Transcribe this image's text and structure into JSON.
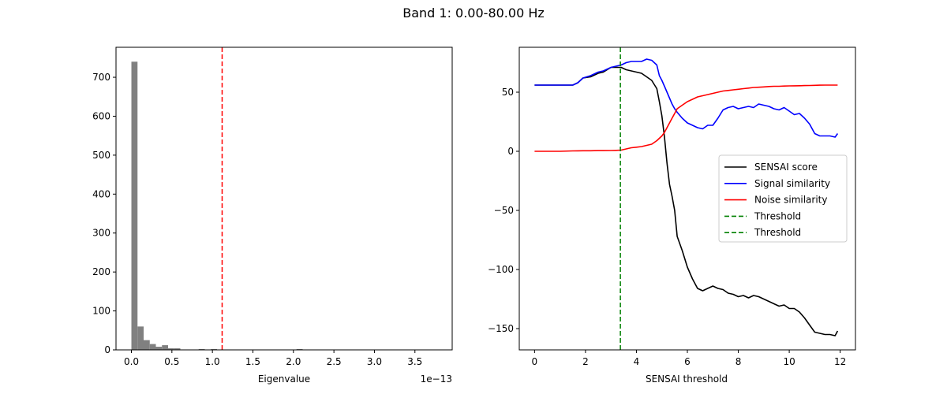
{
  "figure": {
    "suptitle": "Band 1: 0.00-80.00 Hz"
  },
  "chart_data": [
    {
      "type": "bar",
      "subtype": "histogram",
      "title": "",
      "xlabel": "Eigenvalue",
      "ylabel": "",
      "x_offset_label": "1e−13",
      "xlim": [
        -0.19,
        3.96
      ],
      "ylim": [
        0,
        777
      ],
      "xticks": [
        0.0,
        0.5,
        1.0,
        1.5,
        2.0,
        2.5,
        3.0,
        3.5
      ],
      "xtick_labels": [
        "0.0",
        "0.5",
        "1.0",
        "1.5",
        "2.0",
        "2.5",
        "3.0",
        "3.5"
      ],
      "yticks": [
        0,
        100,
        200,
        300,
        400,
        500,
        600,
        700
      ],
      "bar_color": "#808080",
      "bin_width": 0.0755,
      "bin_start": 0.0,
      "counts": [
        740,
        60,
        25,
        15,
        8,
        12,
        4,
        4,
        0,
        0,
        0,
        2,
        0,
        2,
        1,
        0,
        0,
        0,
        0,
        0,
        0,
        0,
        0,
        0,
        0,
        0,
        0,
        2
      ],
      "threshold_line": {
        "x": 1.12,
        "color": "#ff0000",
        "style": "dashed"
      },
      "grid": false
    },
    {
      "type": "line",
      "title": "",
      "xlabel": "SENSAI threshold",
      "ylabel": "",
      "xlim": [
        -0.6,
        12.6
      ],
      "ylim": [
        -168,
        88
      ],
      "xticks": [
        0,
        2,
        4,
        6,
        8,
        10,
        12
      ],
      "yticks": [
        -150,
        -100,
        -50,
        0,
        50
      ],
      "ytick_labels": [
        "−150",
        "−100",
        "−50",
        "0",
        "50"
      ],
      "x": [
        0,
        0.5,
        1.0,
        1.5,
        1.7,
        1.9,
        2.2,
        2.5,
        2.7,
        3.0,
        3.2,
        3.4,
        3.6,
        3.8,
        4.0,
        4.2,
        4.4,
        4.6,
        4.8,
        4.9,
        5.0,
        5.1,
        5.2,
        5.3,
        5.4,
        5.5,
        5.6,
        5.8,
        6.0,
        6.2,
        6.4,
        6.6,
        6.8,
        7.0,
        7.2,
        7.4,
        7.6,
        7.8,
        8.0,
        8.2,
        8.4,
        8.6,
        8.8,
        9.0,
        9.2,
        9.4,
        9.6,
        9.8,
        10.0,
        10.2,
        10.4,
        10.6,
        10.8,
        11.0,
        11.2,
        11.4,
        11.6,
        11.8,
        11.9
      ],
      "series": [
        {
          "name": "SENSAI score",
          "color": "#000000",
          "style": "solid",
          "values": [
            56,
            56,
            56,
            56,
            58,
            62,
            63,
            66,
            67,
            71,
            71,
            71,
            69,
            68,
            67,
            66,
            63,
            60,
            53,
            42,
            30,
            12,
            -10,
            -28,
            -38,
            -50,
            -72,
            -84,
            -98,
            -108,
            -116,
            -118,
            -116,
            -114,
            -116,
            -117,
            -120,
            -121,
            -123,
            -122,
            -124,
            -122,
            -123,
            -125,
            -127,
            -129,
            -131,
            -130,
            -133,
            -133,
            -136,
            -141,
            -147,
            -153,
            -154,
            -155,
            -155,
            -156,
            -152
          ]
        },
        {
          "name": "Signal similarity",
          "color": "#0000ff",
          "style": "solid",
          "values": [
            56,
            56,
            56,
            56,
            58,
            62,
            64,
            67,
            68,
            71,
            72,
            73,
            75,
            76,
            76,
            76,
            78,
            77,
            73,
            64,
            60,
            55,
            50,
            45,
            40,
            36,
            33,
            28,
            24,
            22,
            20,
            19,
            22,
            22,
            28,
            35,
            37,
            38,
            36,
            37,
            38,
            37,
            40,
            39,
            38,
            36,
            35,
            37,
            34,
            31,
            32,
            28,
            23,
            15,
            13,
            13,
            13,
            12,
            15
          ]
        },
        {
          "name": "Noise similarity",
          "color": "#ff0000",
          "style": "solid",
          "values": [
            0,
            0,
            0,
            0.3,
            0.4,
            0.5,
            0.5,
            0.6,
            0.6,
            0.7,
            0.8,
            1,
            2,
            3,
            3.5,
            4,
            5,
            6,
            9,
            11,
            13,
            16,
            20,
            24,
            28,
            32,
            36,
            39,
            42,
            44,
            46,
            47,
            48,
            49,
            50,
            51,
            51.5,
            52,
            52.5,
            53,
            53.5,
            54,
            54.2,
            54.5,
            54.8,
            55,
            55,
            55.2,
            55.3,
            55.4,
            55.5,
            55.6,
            55.7,
            55.8,
            55.9,
            56,
            56,
            56,
            56
          ]
        }
      ],
      "threshold_line": {
        "x": 3.37,
        "color": "#008000",
        "style": "dashed"
      },
      "legend": {
        "position": "center right",
        "entries": [
          {
            "label": "SENSAI score",
            "color": "#000000",
            "style": "solid"
          },
          {
            "label": "Signal similarity",
            "color": "#0000ff",
            "style": "solid"
          },
          {
            "label": "Noise similarity",
            "color": "#ff0000",
            "style": "solid"
          },
          {
            "label": "Threshold",
            "color": "#008000",
            "style": "dashed"
          },
          {
            "label": "Threshold",
            "color": "#008000",
            "style": "dashed"
          }
        ]
      },
      "grid": false
    }
  ]
}
